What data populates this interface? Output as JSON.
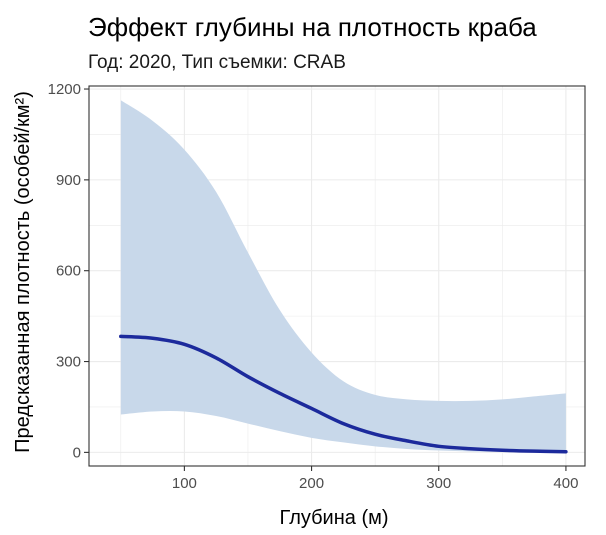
{
  "chart_data": {
    "type": "line",
    "title": "Эффект глубины на плотность краба",
    "subtitle": "Год: 2020, Тип съемки: CRAB",
    "xlabel": "Глубина (м)",
    "ylabel": "Предсказанная плотность (особей/км²)",
    "xlim": [
      25,
      415
    ],
    "ylim": [
      -45,
      1210
    ],
    "x_ticks": [
      100,
      200,
      300,
      400
    ],
    "y_ticks": [
      0,
      300,
      600,
      900,
      1200
    ],
    "grid": true,
    "legend": "none",
    "colors": {
      "line": "#1c2a9c",
      "ribbon": "#c8d8ea",
      "grid": "#ebebeb",
      "panel_border": "#333333"
    },
    "series": [
      {
        "x": [
          50,
          75,
          100,
          125,
          150,
          175,
          200,
          225,
          250,
          275,
          300,
          325,
          350,
          375,
          400
        ],
        "y": [
          383,
          377,
          357,
          312,
          250,
          195,
          145,
          95,
          60,
          38,
          20,
          12,
          7,
          4,
          2
        ],
        "lower": [
          125,
          135,
          135,
          120,
          95,
          70,
          48,
          33,
          20,
          11,
          6,
          3,
          2,
          1,
          0
        ],
        "upper": [
          1163,
          1095,
          1000,
          860,
          660,
          470,
          330,
          235,
          190,
          175,
          170,
          170,
          175,
          185,
          195
        ]
      }
    ]
  }
}
